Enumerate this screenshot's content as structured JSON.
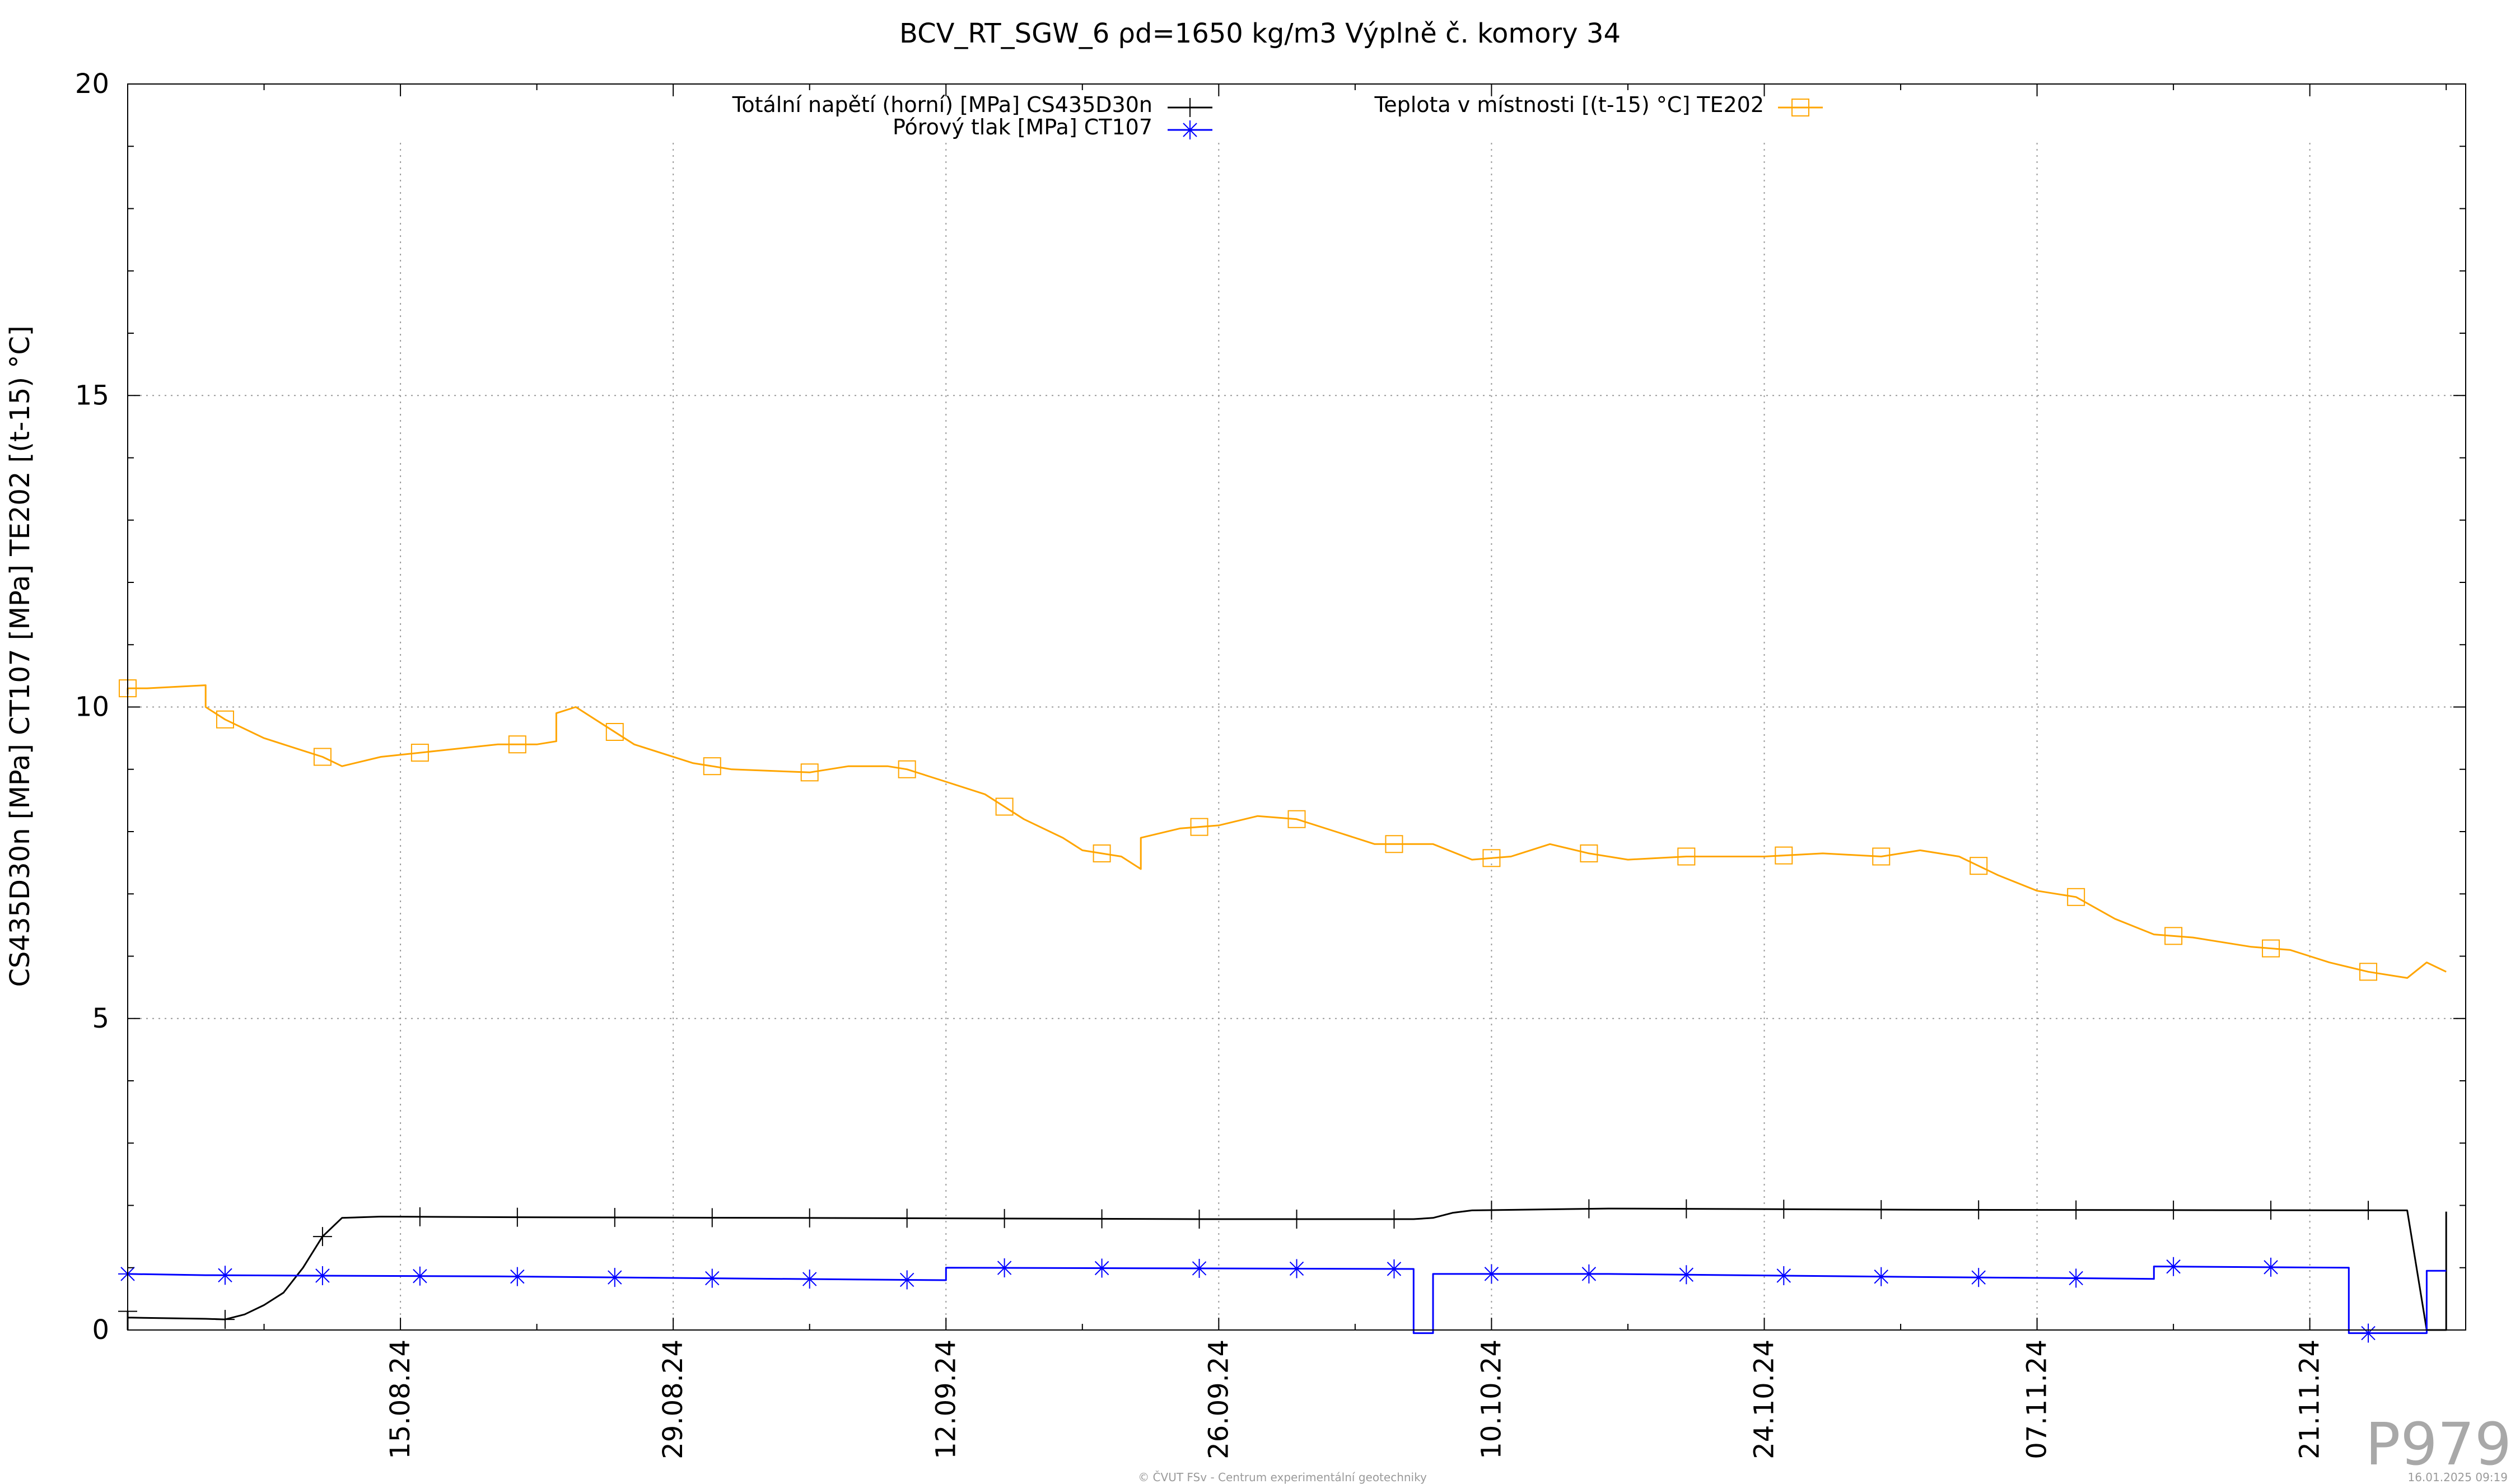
{
  "chart_data": {
    "type": "line",
    "title": "BCV_RT_SGW_6 ρd=1650 kg/m3 Výplně č. komory 34",
    "ylabel": "CS435D30n [MPa] CT107 [MPa] TE202 [(t-15) °C]",
    "xlabel": "",
    "ylim": [
      0,
      20
    ],
    "xlim": [
      "2024-08-01",
      "2024-11-29"
    ],
    "yticks": [
      0,
      5,
      10,
      15,
      20
    ],
    "xticks": [
      "15.08.24",
      "29.08.24",
      "12.09.24",
      "26.09.24",
      "10.10.24",
      "24.10.24",
      "07.11.24",
      "21.11.24"
    ],
    "xtick_dates": [
      "2024-08-15",
      "2024-08-29",
      "2024-09-12",
      "2024-09-26",
      "2024-10-10",
      "2024-10-24",
      "2024-11-07",
      "2024-11-21"
    ],
    "grid": true,
    "legend_position": "top",
    "series": [
      {
        "name": "Totální napětí (horní) [MPa] CS435D30n",
        "color": "#000000",
        "marker": "plus",
        "points": [
          [
            "2024-08-01",
            0.0
          ],
          [
            "2024-08-01",
            0.3
          ],
          [
            "2024-08-01",
            0.2
          ],
          [
            "2024-08-05",
            0.18
          ],
          [
            "2024-08-06",
            0.17
          ],
          [
            "2024-08-07",
            0.25
          ],
          [
            "2024-08-08",
            0.4
          ],
          [
            "2024-08-09",
            0.6
          ],
          [
            "2024-08-10",
            1.0
          ],
          [
            "2024-08-11",
            1.5
          ],
          [
            "2024-08-12",
            1.8
          ],
          [
            "2024-08-14",
            1.82
          ],
          [
            "2024-08-21",
            1.81
          ],
          [
            "2024-09-04",
            1.8
          ],
          [
            "2024-09-25",
            1.78
          ],
          [
            "2024-10-06",
            1.78
          ],
          [
            "2024-10-07",
            1.8
          ],
          [
            "2024-10-08",
            1.88
          ],
          [
            "2024-10-09",
            1.92
          ],
          [
            "2024-10-16",
            1.95
          ],
          [
            "2024-11-01",
            1.93
          ],
          [
            "2024-11-26",
            1.92
          ],
          [
            "2024-11-27",
            0.0
          ],
          [
            "2024-11-28",
            0.0
          ],
          [
            "2024-11-28",
            1.9
          ]
        ]
      },
      {
        "name": "Pórový tlak [MPa] CT107",
        "color": "#0000ff",
        "marker": "star",
        "points": [
          [
            "2024-08-01",
            0.9
          ],
          [
            "2024-08-05",
            0.88
          ],
          [
            "2024-08-20",
            0.86
          ],
          [
            "2024-09-04",
            0.82
          ],
          [
            "2024-09-12",
            0.8
          ],
          [
            "2024-09-12",
            1.0
          ],
          [
            "2024-10-06",
            0.98
          ],
          [
            "2024-10-06",
            -0.05
          ],
          [
            "2024-10-07",
            -0.05
          ],
          [
            "2024-10-07",
            0.9
          ],
          [
            "2024-10-16",
            0.9
          ],
          [
            "2024-11-01",
            0.85
          ],
          [
            "2024-11-10",
            0.83
          ],
          [
            "2024-11-13",
            0.82
          ],
          [
            "2024-11-13",
            1.02
          ],
          [
            "2024-11-23",
            1.0
          ],
          [
            "2024-11-23",
            -0.05
          ],
          [
            "2024-11-27",
            -0.05
          ],
          [
            "2024-11-27",
            0.95
          ],
          [
            "2024-11-28",
            0.95
          ]
        ]
      },
      {
        "name": "Teplota v místnosti [(t-15) °C] TE202",
        "color": "#ffa500",
        "marker": "square",
        "points": [
          [
            "2024-08-01",
            10.2
          ],
          [
            "2024-08-01",
            10.3
          ],
          [
            "2024-08-02",
            10.3
          ],
          [
            "2024-08-05",
            10.35
          ],
          [
            "2024-08-05",
            10.0
          ],
          [
            "2024-08-06",
            9.8
          ],
          [
            "2024-08-08",
            9.5
          ],
          [
            "2024-08-10",
            9.3
          ],
          [
            "2024-08-11",
            9.2
          ],
          [
            "2024-08-12",
            9.05
          ],
          [
            "2024-08-14",
            9.2
          ],
          [
            "2024-08-17",
            9.3
          ],
          [
            "2024-08-20",
            9.4
          ],
          [
            "2024-08-22",
            9.4
          ],
          [
            "2024-08-23",
            9.45
          ],
          [
            "2024-08-23",
            9.9
          ],
          [
            "2024-08-24",
            10.0
          ],
          [
            "2024-08-25",
            9.8
          ],
          [
            "2024-08-27",
            9.4
          ],
          [
            "2024-08-30",
            9.1
          ],
          [
            "2024-09-01",
            9.0
          ],
          [
            "2024-09-05",
            8.95
          ],
          [
            "2024-09-07",
            9.05
          ],
          [
            "2024-09-09",
            9.05
          ],
          [
            "2024-09-10",
            9.0
          ],
          [
            "2024-09-12",
            8.8
          ],
          [
            "2024-09-14",
            8.6
          ],
          [
            "2024-09-16",
            8.2
          ],
          [
            "2024-09-18",
            7.9
          ],
          [
            "2024-09-19",
            7.7
          ],
          [
            "2024-09-21",
            7.6
          ],
          [
            "2024-09-22",
            7.4
          ],
          [
            "2024-09-22",
            7.9
          ],
          [
            "2024-09-24",
            8.05
          ],
          [
            "2024-09-26",
            8.1
          ],
          [
            "2024-09-28",
            8.25
          ],
          [
            "2024-09-30",
            8.2
          ],
          [
            "2024-10-02",
            8.0
          ],
          [
            "2024-10-04",
            7.8
          ],
          [
            "2024-10-06",
            7.8
          ],
          [
            "2024-10-07",
            7.8
          ],
          [
            "2024-10-09",
            7.55
          ],
          [
            "2024-10-11",
            7.6
          ],
          [
            "2024-10-13",
            7.8
          ],
          [
            "2024-10-15",
            7.65
          ],
          [
            "2024-10-17",
            7.55
          ],
          [
            "2024-10-20",
            7.6
          ],
          [
            "2024-10-24",
            7.6
          ],
          [
            "2024-10-27",
            7.65
          ],
          [
            "2024-10-30",
            7.6
          ],
          [
            "2024-11-01",
            7.7
          ],
          [
            "2024-11-03",
            7.6
          ],
          [
            "2024-11-05",
            7.3
          ],
          [
            "2024-11-07",
            7.05
          ],
          [
            "2024-11-09",
            6.95
          ],
          [
            "2024-11-11",
            6.6
          ],
          [
            "2024-11-13",
            6.35
          ],
          [
            "2024-11-15",
            6.3
          ],
          [
            "2024-11-18",
            6.15
          ],
          [
            "2024-11-20",
            6.1
          ],
          [
            "2024-11-21",
            6.0
          ],
          [
            "2024-11-22",
            5.9
          ],
          [
            "2024-11-24",
            5.75
          ],
          [
            "2024-11-26",
            5.65
          ],
          [
            "2024-11-27",
            5.9
          ],
          [
            "2024-11-28",
            5.75
          ]
        ]
      }
    ]
  },
  "watermark": "P979",
  "footer_center": "© ČVUT FSv - Centrum experimentální geotechniky",
  "footer_right": "16.01.2025 09:19"
}
